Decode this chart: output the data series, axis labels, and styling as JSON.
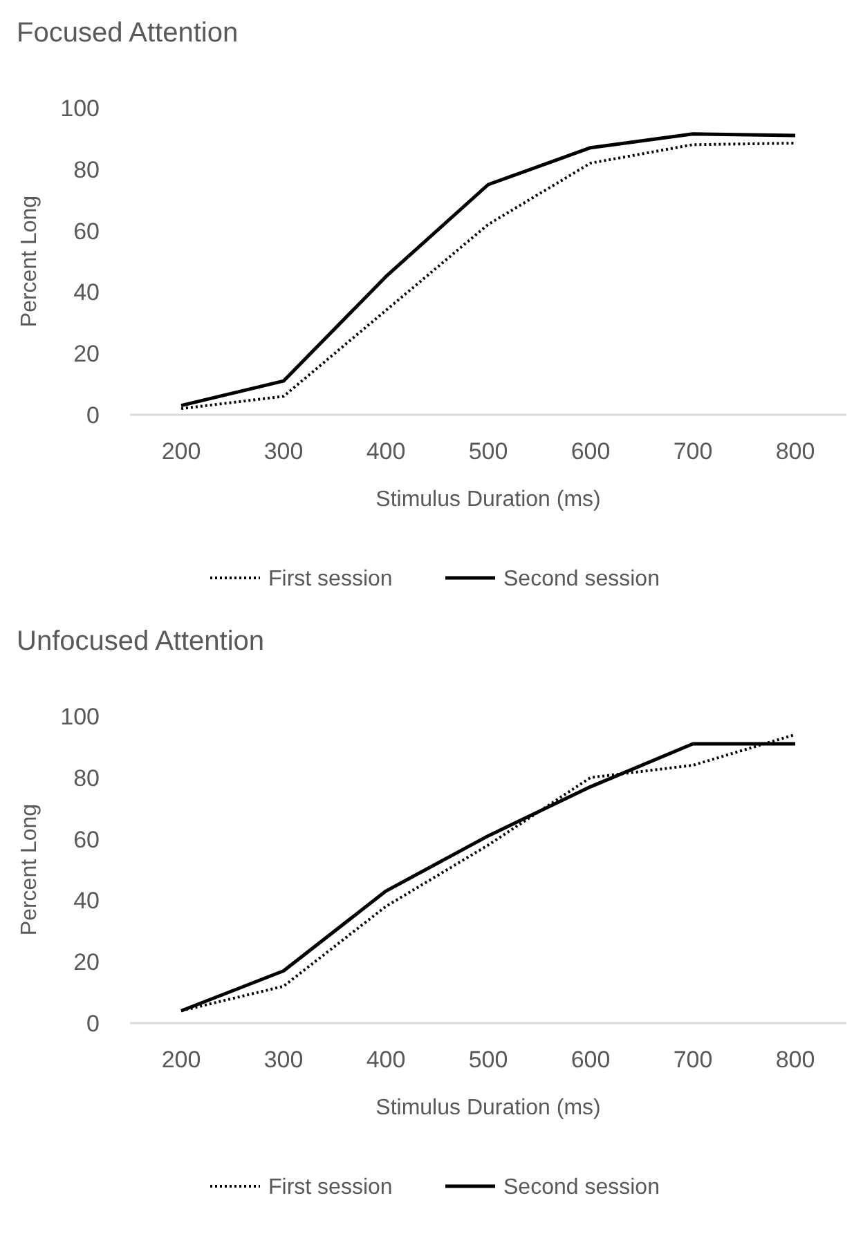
{
  "chart_data": [
    {
      "type": "line",
      "title": "Focused Attention",
      "xlabel": "Stimulus Duration (ms)",
      "ylabel": "Percent Long",
      "categories": [
        "200",
        "300",
        "400",
        "500",
        "600",
        "700",
        "800"
      ],
      "ylim": [
        0,
        100
      ],
      "yticks": [
        0,
        20,
        40,
        60,
        80,
        100
      ],
      "legend": "bottom",
      "series": [
        {
          "name": "First session",
          "color": "#000000",
          "line_style": "dotted",
          "values": [
            2,
            6,
            34,
            62,
            82,
            88,
            88.5
          ]
        },
        {
          "name": "Second session",
          "color": "#000000",
          "line_style": "solid",
          "values": [
            3,
            11,
            45,
            75,
            87,
            91.5,
            91
          ]
        }
      ]
    },
    {
      "type": "line",
      "title": "Unfocused Attention",
      "xlabel": "Stimulus Duration (ms)",
      "ylabel": "Percent Long",
      "categories": [
        "200",
        "300",
        "400",
        "500",
        "600",
        "700",
        "800"
      ],
      "ylim": [
        0,
        100
      ],
      "yticks": [
        0,
        20,
        40,
        60,
        80,
        100
      ],
      "legend": "bottom",
      "series": [
        {
          "name": "First session",
          "color": "#000000",
          "line_style": "dotted",
          "values": [
            4,
            12,
            38,
            58,
            80,
            84,
            94
          ]
        },
        {
          "name": "Second session",
          "color": "#000000",
          "line_style": "solid",
          "values": [
            4,
            17,
            43,
            61,
            77,
            91,
            91
          ]
        }
      ]
    }
  ]
}
